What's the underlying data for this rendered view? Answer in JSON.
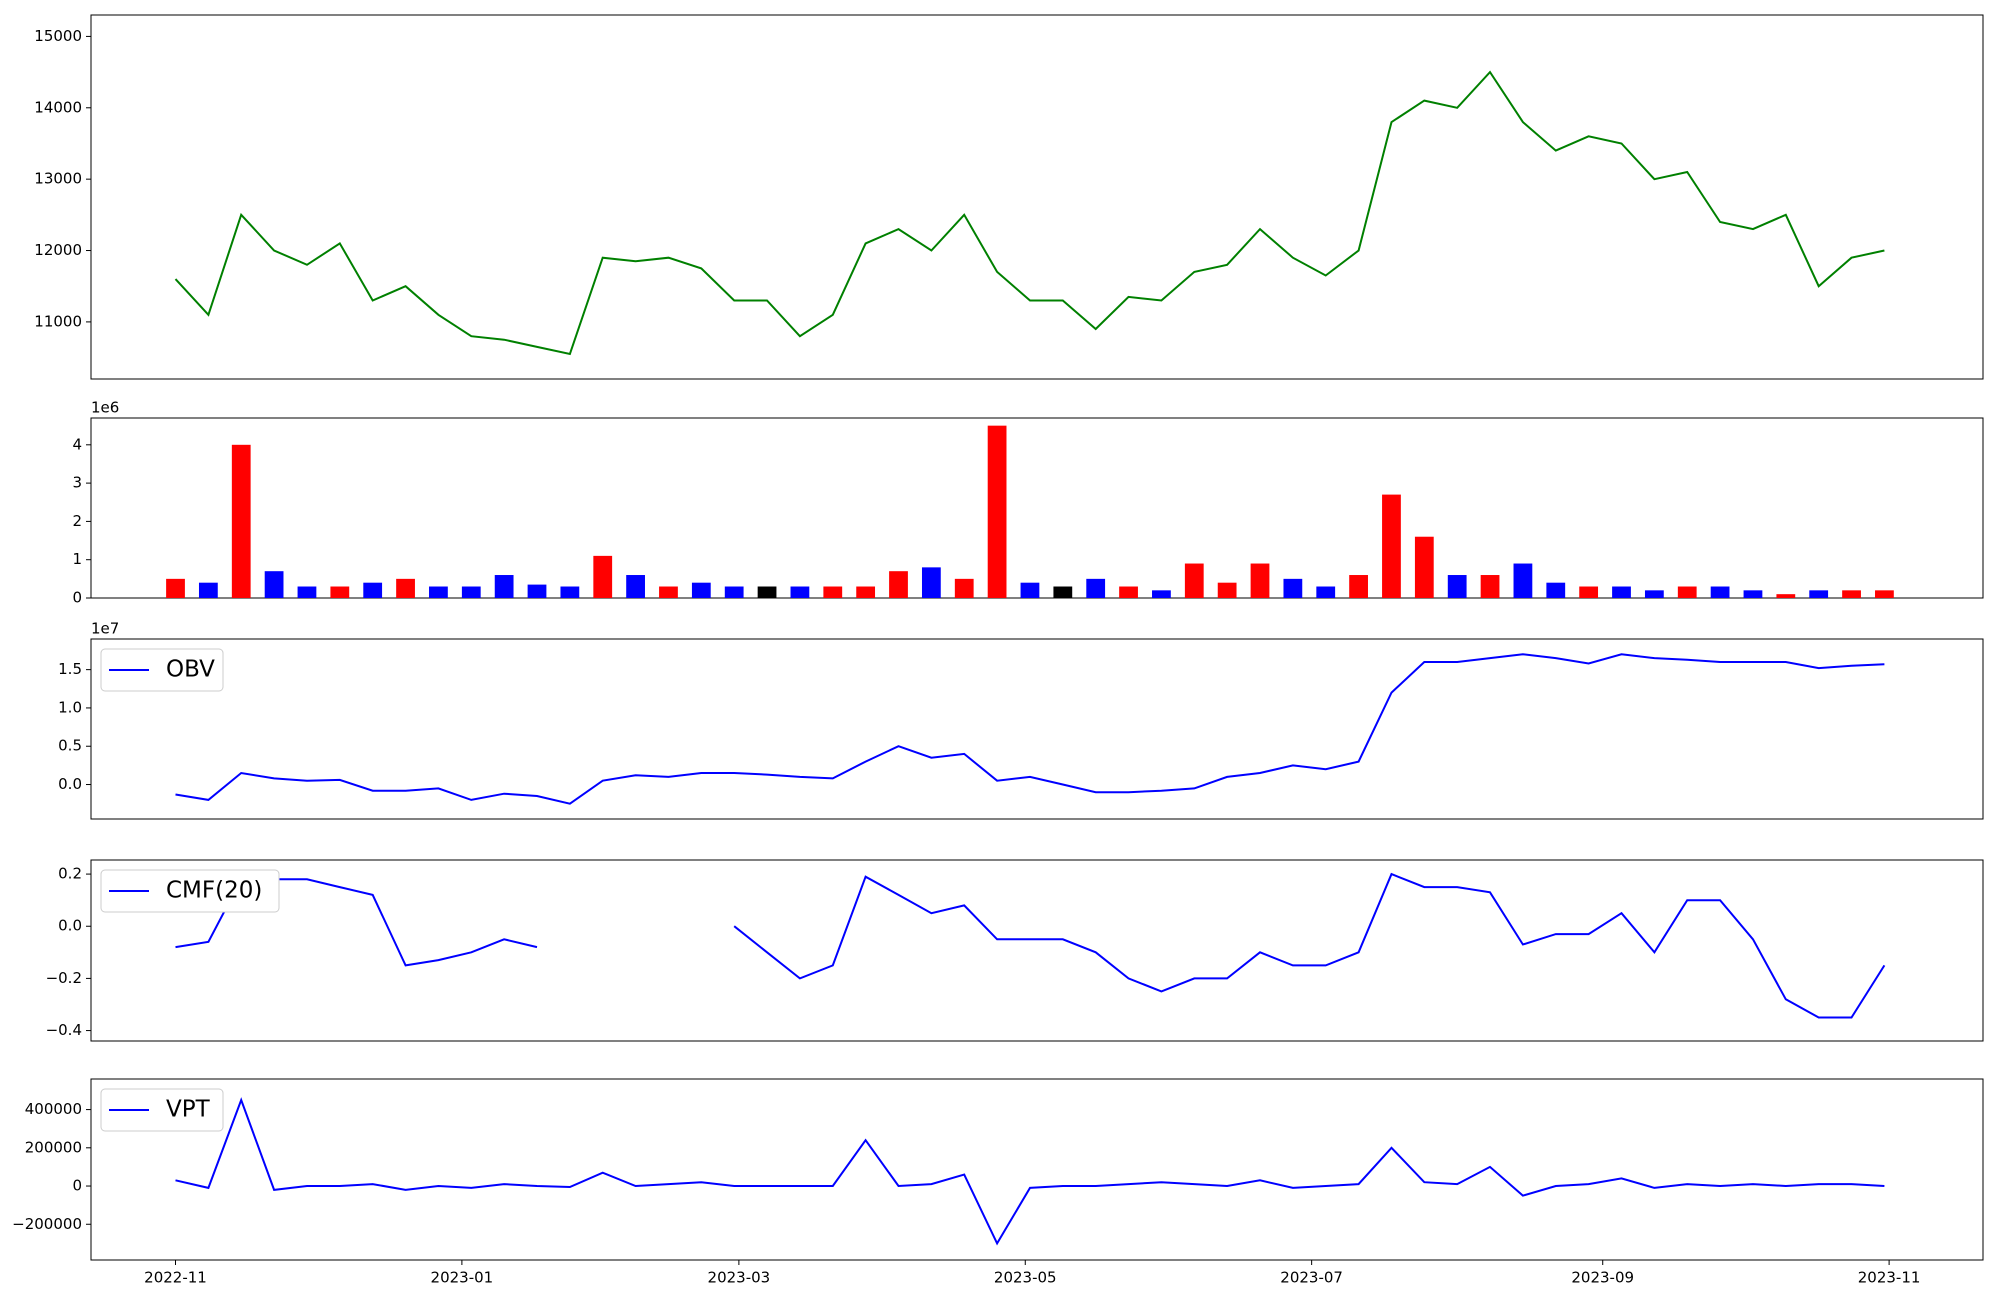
{
  "chart_data": [
    {
      "type": "line",
      "x": [
        0,
        7,
        14,
        21,
        28,
        35,
        42,
        49,
        56,
        63,
        70,
        77,
        84,
        91,
        98,
        105,
        112,
        119,
        126,
        133,
        140,
        147,
        154,
        161,
        168,
        175,
        182,
        189,
        196,
        203,
        210,
        217,
        224,
        231,
        238,
        245,
        252,
        259,
        266,
        273,
        280,
        287,
        294,
        301,
        308,
        315,
        322,
        329,
        336,
        343,
        350,
        357,
        364
      ],
      "values": [
        11600,
        11100,
        12500,
        12000,
        11800,
        12100,
        11300,
        11500,
        11100,
        10800,
        10750,
        10650,
        10550,
        11900,
        11850,
        11900,
        11750,
        11300,
        11300,
        10800,
        11100,
        12100,
        12300,
        12000,
        12500,
        11700,
        11300,
        11300,
        10900,
        11350,
        11300,
        11700,
        11800,
        12300,
        11900,
        11650,
        12000,
        13800,
        14100,
        14000,
        14500,
        13800,
        13400,
        13600,
        13500,
        13000,
        13100,
        12400,
        12300,
        12500,
        11500,
        11900,
        12000
      ],
      "color": "#008000",
      "xlim": [
        -18,
        385
      ],
      "ylim": [
        10200,
        15300
      ],
      "yticks": [
        11000,
        12000,
        13000,
        14000,
        15000
      ]
    },
    {
      "type": "bar",
      "x": [
        0,
        7,
        14,
        21,
        28,
        35,
        42,
        49,
        56,
        63,
        70,
        77,
        84,
        91,
        98,
        105,
        112,
        119,
        126,
        133,
        140,
        147,
        154,
        161,
        168,
        175,
        182,
        189,
        196,
        203,
        210,
        217,
        224,
        231,
        238,
        245,
        252,
        259,
        266,
        273,
        280,
        287,
        294,
        301,
        308,
        315,
        322,
        329,
        336,
        343,
        350,
        357,
        364
      ],
      "values": [
        500000,
        400000,
        4000000,
        700000,
        300000,
        300000,
        400000,
        500000,
        300000,
        300000,
        600000,
        350000,
        300000,
        1100000,
        600000,
        300000,
        400000,
        300000,
        300000,
        300000,
        300000,
        300000,
        700000,
        800000,
        500000,
        4500000,
        400000,
        300000,
        500000,
        300000,
        200000,
        900000,
        400000,
        900000,
        500000,
        300000,
        600000,
        2700000,
        1600000,
        600000,
        600000,
        900000,
        400000,
        300000,
        300000,
        200000,
        300000,
        300000,
        200000,
        100000,
        200000,
        200000,
        200000
      ],
      "colors": [
        "#ff0000",
        "#0000ff",
        "#ff0000",
        "#0000ff",
        "#0000ff",
        "#ff0000",
        "#0000ff",
        "#ff0000",
        "#0000ff",
        "#0000ff",
        "#0000ff",
        "#0000ff",
        "#0000ff",
        "#ff0000",
        "#0000ff",
        "#ff0000",
        "#0000ff",
        "#0000ff",
        "#000000",
        "#0000ff",
        "#ff0000",
        "#ff0000",
        "#ff0000",
        "#0000ff",
        "#ff0000",
        "#ff0000",
        "#0000ff",
        "#000000",
        "#0000ff",
        "#ff0000",
        "#0000ff",
        "#ff0000",
        "#ff0000",
        "#ff0000",
        "#0000ff",
        "#0000ff",
        "#ff0000",
        "#ff0000",
        "#ff0000",
        "#0000ff",
        "#ff0000",
        "#0000ff",
        "#0000ff",
        "#ff0000",
        "#0000ff",
        "#0000ff",
        "#ff0000",
        "#0000ff",
        "#0000ff",
        "#ff0000",
        "#0000ff",
        "#ff0000",
        "#ff0000"
      ],
      "offset_label": "1e6",
      "xlim": [
        -18,
        385
      ],
      "ylim": [
        0,
        4700000
      ],
      "yticks": [
        0,
        {
          "value": 1000000,
          "label": "1"
        },
        {
          "value": 2000000,
          "label": "2"
        },
        {
          "value": 3000000,
          "label": "3"
        },
        {
          "value": 4000000,
          "label": "4"
        }
      ]
    },
    {
      "type": "line",
      "x": [
        0,
        7,
        14,
        21,
        28,
        35,
        42,
        49,
        56,
        63,
        70,
        77,
        84,
        91,
        98,
        105,
        112,
        119,
        126,
        133,
        140,
        147,
        154,
        161,
        168,
        175,
        182,
        189,
        196,
        203,
        210,
        217,
        224,
        231,
        238,
        245,
        252,
        259,
        266,
        273,
        280,
        287,
        294,
        301,
        308,
        315,
        322,
        329,
        336,
        343,
        350,
        357,
        364
      ],
      "series": [
        {
          "name": "OBV",
          "color": "#0000ff",
          "values": [
            -1300000,
            -2000000,
            1500000,
            800000,
            500000,
            600000,
            -800000,
            -800000,
            -500000,
            -2000000,
            -1200000,
            -1500000,
            -2500000,
            500000,
            1200000,
            1000000,
            1500000,
            1500000,
            1300000,
            1000000,
            800000,
            3000000,
            5000000,
            3500000,
            4000000,
            500000,
            1000000,
            0,
            -1000000,
            -1000000,
            -800000,
            -500000,
            1000000,
            1500000,
            2500000,
            2000000,
            3000000,
            12000000,
            16000000,
            16000000,
            16500000,
            17000000,
            16500000,
            15800000,
            17000000,
            16500000,
            16300000,
            16000000,
            16000000,
            16000000,
            15200000,
            15500000,
            15700000
          ]
        }
      ],
      "offset_label": "1e7",
      "legend": "upper left",
      "xlim": [
        -18,
        385
      ],
      "ylim": [
        -4500000,
        19000000
      ],
      "yticks": [
        {
          "value": 0,
          "label": "0.0"
        },
        {
          "value": 5000000,
          "label": "0.5"
        },
        {
          "value": 10000000,
          "label": "1.0"
        },
        {
          "value": 15000000,
          "label": "1.5"
        }
      ]
    },
    {
      "type": "line",
      "x": [
        0,
        7,
        14,
        21,
        28,
        35,
        42,
        49,
        56,
        63,
        70,
        77,
        84,
        91,
        98,
        105,
        112,
        119,
        126,
        133,
        140,
        147,
        154,
        161,
        168,
        175,
        182,
        189,
        196,
        203,
        210,
        217,
        224,
        231,
        238,
        245,
        252,
        259,
        266,
        273,
        280,
        287,
        294,
        301,
        308,
        315,
        322,
        329,
        336,
        343,
        350,
        357,
        364
      ],
      "series": [
        {
          "name": "CMF(20)",
          "color": "#0000ff",
          "values": [
            -0.08,
            -0.06,
            0.18,
            0.18,
            0.18,
            0.15,
            0.12,
            -0.15,
            -0.13,
            -0.1,
            -0.05,
            -0.08,
            null,
            null,
            null,
            null,
            null,
            0.0,
            -0.1,
            -0.2,
            -0.15,
            0.19,
            0.12,
            0.05,
            0.08,
            -0.05,
            -0.05,
            -0.05,
            -0.1,
            -0.2,
            -0.25,
            -0.2,
            -0.2,
            -0.1,
            -0.15,
            -0.15,
            -0.1,
            0.2,
            0.15,
            0.15,
            0.13,
            -0.07,
            -0.03,
            -0.03,
            0.05,
            -0.1,
            0.1,
            0.1,
            -0.05,
            -0.28,
            -0.35,
            -0.35,
            -0.15
          ]
        }
      ],
      "legend": "upper left",
      "xlim": [
        -18,
        385
      ],
      "ylim": [
        -0.44,
        0.254
      ],
      "yticks": [
        {
          "value": -0.4,
          "label": "−0.4"
        },
        {
          "value": -0.2,
          "label": "−0.2"
        },
        {
          "value": 0,
          "label": "0.0"
        },
        {
          "value": 0.2,
          "label": "0.2"
        }
      ]
    },
    {
      "type": "line",
      "x": [
        0,
        7,
        14,
        21,
        28,
        35,
        42,
        49,
        56,
        63,
        70,
        77,
        84,
        91,
        98,
        105,
        112,
        119,
        126,
        133,
        140,
        147,
        154,
        161,
        168,
        175,
        182,
        189,
        196,
        203,
        210,
        217,
        224,
        231,
        238,
        245,
        252,
        259,
        266,
        273,
        280,
        287,
        294,
        301,
        308,
        315,
        322,
        329,
        336,
        343,
        350,
        357,
        364
      ],
      "series": [
        {
          "name": "VPT",
          "color": "#0000ff",
          "values": [
            30000,
            -10000,
            450000,
            -20000,
            0,
            0,
            10000,
            -20000,
            0,
            -10000,
            10000,
            0,
            -5000,
            70000,
            0,
            10000,
            20000,
            0,
            0,
            0,
            0,
            240000,
            0,
            10000,
            60000,
            -300000,
            -10000,
            0,
            0,
            10000,
            20000,
            10000,
            0,
            30000,
            -10000,
            0,
            10000,
            200000,
            20000,
            10000,
            100000,
            -50000,
            0,
            10000,
            40000,
            -10000,
            10000,
            0,
            10000,
            0,
            10000,
            10000,
            0
          ]
        }
      ],
      "legend": "upper left",
      "xlim": [
        -18,
        385
      ],
      "ylim": [
        -387000,
        560000
      ],
      "yticks": [
        {
          "value": -200000,
          "label": "−200000"
        },
        0,
        200000,
        400000
      ],
      "xticks": [
        {
          "value": 0,
          "label": "2022-11"
        },
        {
          "value": 61,
          "label": "2023-01"
        },
        {
          "value": 120,
          "label": "2023-03"
        },
        {
          "value": 181,
          "label": "2023-05"
        },
        {
          "value": 242,
          "label": "2023-07"
        },
        {
          "value": 304,
          "label": "2023-09"
        },
        {
          "value": 365,
          "label": "2023-11"
        }
      ]
    }
  ]
}
